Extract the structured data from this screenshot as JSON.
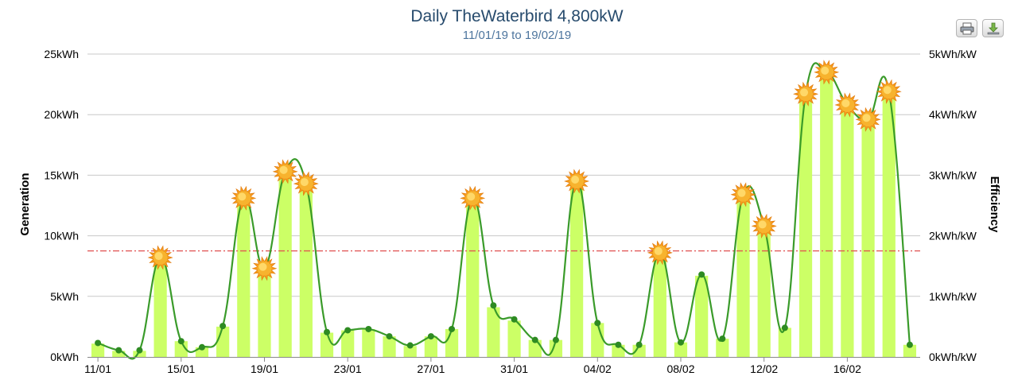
{
  "chart_data": {
    "type": "bar",
    "title": "Daily TheWaterbird 4,800kW",
    "subtitle": "11/01/19 to 19/02/19",
    "ylabel": "Generation",
    "y2label": "Efficiency",
    "ylim": [
      0,
      25000
    ],
    "y2lim": [
      0,
      5
    ],
    "yticks": [
      "0kWh",
      "5kWh",
      "10kWh",
      "15kWh",
      "20kWh",
      "25kWh"
    ],
    "y2ticks": [
      "0kWh/kW",
      "1kWh/kW",
      "2kWh/kW",
      "3kWh/kW",
      "4kWh/kW",
      "5kWh/kW"
    ],
    "xticks": [
      "11/01",
      "15/01",
      "19/01",
      "23/01",
      "27/01",
      "31/01",
      "04/02",
      "08/02",
      "12/02",
      "16/02"
    ],
    "categories": [
      "11/01",
      "12/01",
      "13/01",
      "14/01",
      "15/01",
      "16/01",
      "17/01",
      "18/01",
      "19/01",
      "20/01",
      "21/01",
      "22/01",
      "23/01",
      "24/01",
      "25/01",
      "26/01",
      "27/01",
      "28/01",
      "29/01",
      "30/01",
      "31/01",
      "01/02",
      "02/02",
      "03/02",
      "04/02",
      "05/02",
      "06/02",
      "07/02",
      "08/02",
      "09/02",
      "10/02",
      "11/02",
      "12/02",
      "13/02",
      "14/02",
      "15/02",
      "16/02",
      "17/02",
      "18/02",
      "19/02"
    ],
    "series": [
      {
        "name": "Generation",
        "type": "bar",
        "color": "#ccff66",
        "values": [
          1100,
          500,
          500,
          8200,
          1300,
          800,
          2500,
          13100,
          7300,
          15300,
          14300,
          2000,
          2200,
          2300,
          1700,
          900,
          1700,
          2300,
          13100,
          4100,
          3000,
          1400,
          1400,
          14500,
          2800,
          1000,
          1000,
          8600,
          1200,
          6700,
          1500,
          13400,
          10800,
          2400,
          21700,
          23500,
          20800,
          19600,
          21900,
          1000
        ]
      },
      {
        "name": "Efficiency",
        "type": "line",
        "axis": "right",
        "color": "#3a9b2a",
        "values": [
          0.23,
          0.11,
          0.11,
          1.64,
          0.26,
          0.16,
          0.51,
          2.62,
          1.46,
          3.06,
          2.86,
          0.41,
          0.44,
          0.46,
          0.34,
          0.19,
          0.34,
          0.46,
          2.62,
          0.85,
          0.62,
          0.28,
          0.28,
          2.9,
          0.56,
          0.2,
          0.2,
          1.72,
          0.24,
          1.36,
          0.3,
          2.68,
          2.16,
          0.48,
          4.34,
          4.7,
          4.16,
          3.92,
          4.38,
          0.2
        ]
      }
    ],
    "sunny_days": [
      3,
      7,
      8,
      9,
      10,
      18,
      23,
      27,
      31,
      32,
      34,
      35,
      36,
      37,
      38
    ],
    "reference_line": {
      "value": 8750,
      "color": "#e05050",
      "style": "dash-dot"
    },
    "grid": true,
    "legend": "none"
  },
  "toolbar": {
    "print_icon": "printer-icon",
    "download_icon": "download-icon"
  }
}
